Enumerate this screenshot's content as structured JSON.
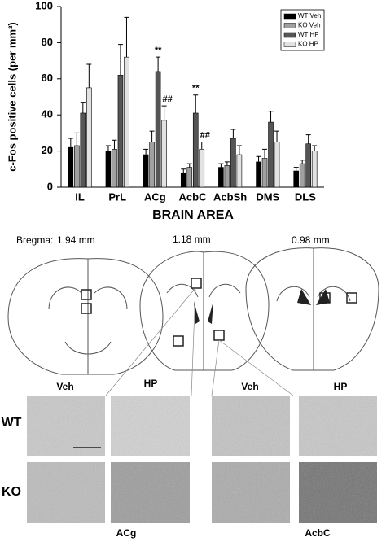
{
  "chart_data": {
    "type": "bar",
    "ylabel": "c-Fos positive cells (per mm²)",
    "xlabel": "BRAIN AREA",
    "categories": [
      "IL",
      "PrL",
      "ACg",
      "AcbC",
      "AcbSh",
      "DMS",
      "DLS"
    ],
    "series": [
      {
        "name": "WT Veh",
        "color": "#000000",
        "values": [
          22,
          20,
          18,
          8,
          11,
          14,
          9
        ],
        "errors": [
          5,
          3,
          3,
          2,
          2,
          3,
          2
        ]
      },
      {
        "name": "KO Veh",
        "color": "#a0a0a0",
        "values": [
          23,
          21,
          25,
          11,
          12,
          16,
          13
        ],
        "errors": [
          7,
          5,
          6,
          2,
          2,
          5,
          2
        ]
      },
      {
        "name": "WT HP",
        "color": "#555555",
        "values": [
          41,
          62,
          64,
          41,
          27,
          36,
          24
        ],
        "errors": [
          6,
          17,
          8,
          10,
          5,
          6,
          5
        ],
        "annotations": [
          null,
          null,
          "**",
          "**",
          null,
          null,
          null
        ]
      },
      {
        "name": "KO HP",
        "color": "#e2e2e2",
        "values": [
          55,
          72,
          37,
          21,
          18,
          25,
          20
        ],
        "errors": [
          13,
          22,
          8,
          4,
          5,
          6,
          3
        ],
        "annotations": [
          null,
          null,
          "##",
          "##",
          null,
          null,
          null
        ]
      }
    ],
    "ylim": [
      0,
      100
    ],
    "yticks": [
      0,
      20,
      40,
      60,
      80,
      100
    ],
    "grid": false,
    "legend": "upper right"
  },
  "atlas": {
    "bregma_label": "Bregma:",
    "levels": [
      "1.94 mm",
      "1.18 mm",
      "0.98 mm"
    ]
  },
  "micrographs": {
    "columns": [
      "Veh",
      "HP",
      "Veh",
      "HP"
    ],
    "rows": [
      "WT",
      "KO"
    ],
    "regions": [
      "ACg",
      "AcbC"
    ]
  }
}
